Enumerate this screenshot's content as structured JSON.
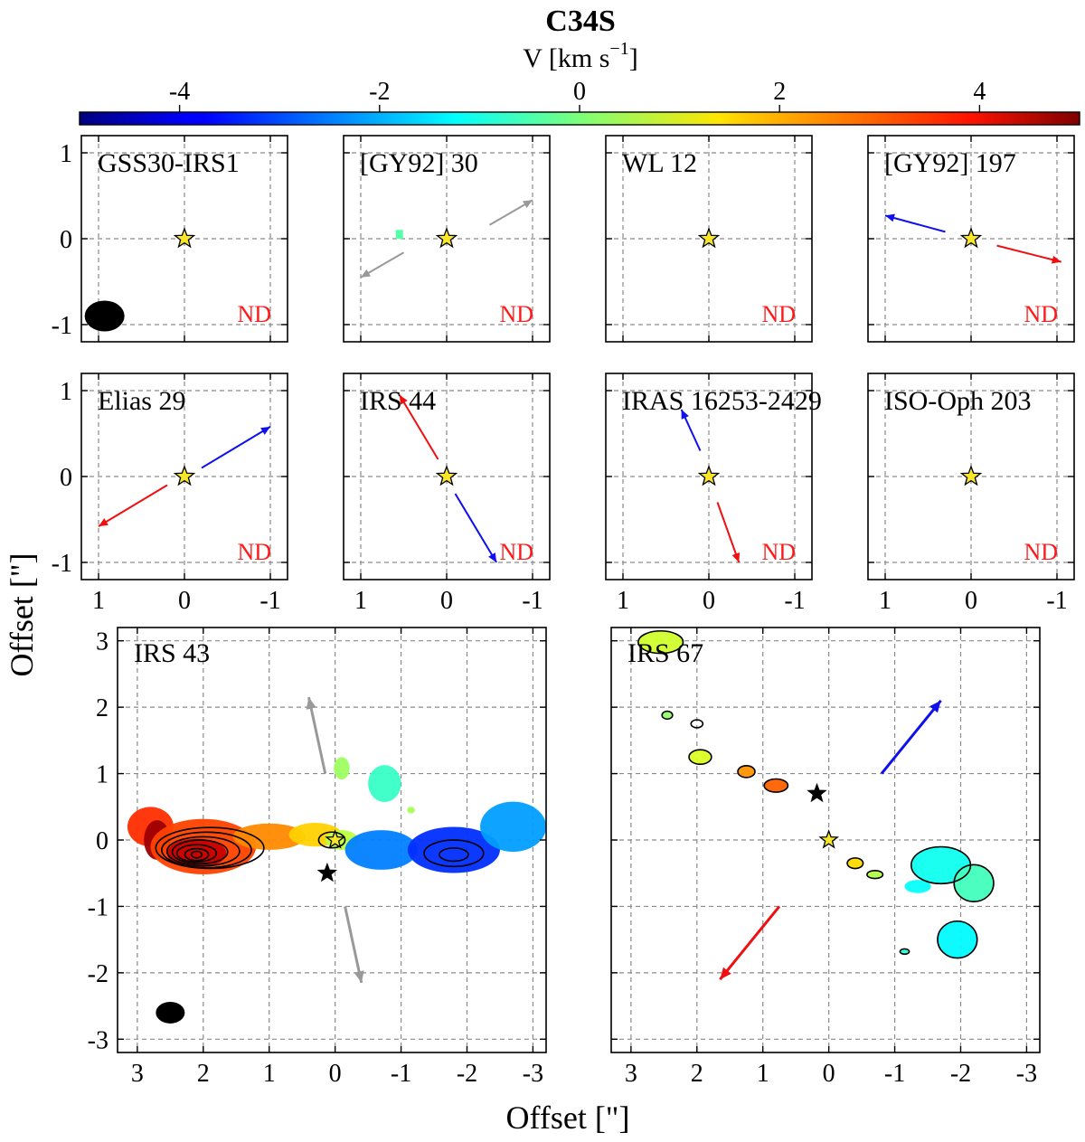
{
  "chart_data": {
    "type": "heatmap",
    "title": "C34S",
    "colorbar": {
      "label": "V [km s-1]",
      "label_main": "V [km s",
      "label_exp": "−1",
      "label_close": "]",
      "vmin": -5.0,
      "vmax": 5.0,
      "ticks": [
        -4,
        -2,
        0,
        2,
        4
      ],
      "tick_labels": [
        "-4",
        "-2",
        "0",
        "2",
        "4"
      ],
      "cmap": "jet"
    },
    "xlabel": "Offset [\"]",
    "ylabel": "Offset [\"]",
    "small_panels": {
      "xlim": [
        1.2,
        -1.2
      ],
      "ylim": [
        -1.2,
        1.2
      ],
      "ticks": [
        1,
        0,
        -1
      ],
      "tick_labels": [
        "1",
        "0",
        "-1"
      ],
      "nd_label": "ND",
      "items": [
        {
          "name": "GSS30-IRS1",
          "row": 0,
          "col": 0,
          "beam": true,
          "arrows": []
        },
        {
          "name": "[GY92] 30",
          "row": 0,
          "col": 1,
          "pixel": {
            "x": 0.55,
            "y": 0.05,
            "v": -0.4
          },
          "arrows": [
            {
              "color": "#999999",
              "from": [
                0.5,
                -0.16
              ],
              "to": [
                1.0,
                -0.45
              ]
            },
            {
              "color": "#999999",
              "from": [
                -0.5,
                0.16
              ],
              "to": [
                -1.0,
                0.45
              ]
            }
          ]
        },
        {
          "name": "WL 12",
          "row": 0,
          "col": 2,
          "arrows": []
        },
        {
          "name": "[GY92] 197",
          "row": 0,
          "col": 3,
          "arrows": [
            {
              "color": "#1010ee",
              "from": [
                0.3,
                0.08
              ],
              "to": [
                1.0,
                0.27
              ]
            },
            {
              "color": "#ee1010",
              "from": [
                -0.3,
                -0.08
              ],
              "to": [
                -1.05,
                -0.27
              ]
            }
          ]
        },
        {
          "name": "Elias 29",
          "row": 1,
          "col": 0,
          "arrows": [
            {
              "color": "#1010ee",
              "from": [
                -0.2,
                0.1
              ],
              "to": [
                -1.0,
                0.58
              ]
            },
            {
              "color": "#ee1010",
              "from": [
                0.2,
                -0.1
              ],
              "to": [
                1.0,
                -0.58
              ]
            }
          ]
        },
        {
          "name": "IRS 44",
          "row": 1,
          "col": 1,
          "arrows": [
            {
              "color": "#ee1010",
              "from": [
                0.1,
                0.2
              ],
              "to": [
                0.55,
                0.95
              ]
            },
            {
              "color": "#1010ee",
              "from": [
                -0.1,
                -0.2
              ],
              "to": [
                -0.58,
                -1.0
              ]
            }
          ]
        },
        {
          "name": "IRAS 16253-2429",
          "row": 1,
          "col": 2,
          "arrows": [
            {
              "color": "#1010ee",
              "from": [
                0.1,
                0.3
              ],
              "to": [
                0.32,
                0.78
              ]
            },
            {
              "color": "#ee1010",
              "from": [
                -0.1,
                -0.3
              ],
              "to": [
                -0.35,
                -1.0
              ]
            }
          ]
        },
        {
          "name": "ISO-Oph 203",
          "row": 1,
          "col": 3,
          "arrows": []
        }
      ]
    },
    "large_panels": {
      "xlim": [
        3.3,
        -3.2
      ],
      "ylim": [
        -3.2,
        3.2
      ],
      "ticks": [
        3,
        2,
        1,
        0,
        -1,
        -2,
        -3
      ],
      "tick_labels": [
        "3",
        "2",
        "1",
        "0",
        "-1",
        "-2",
        "-3"
      ],
      "items": [
        {
          "name": "IRS 43",
          "beam": [
            2.5,
            -2.6
          ],
          "star2": [
            0.12,
            -0.5
          ],
          "arrows": [
            {
              "color": "#999999",
              "from": [
                0.15,
                1.0
              ],
              "to": [
                0.4,
                2.15
              ]
            },
            {
              "color": "#999999",
              "from": [
                -0.15,
                -1.0
              ],
              "to": [
                -0.4,
                -2.15
              ]
            }
          ],
          "blobs": [
            {
              "v": 3.3,
              "cx": 2.8,
              "cy": 0.2,
              "rx": 0.35,
              "ry": 0.3
            },
            {
              "v": 4.7,
              "cx": 2.7,
              "cy": 0.0,
              "rx": 0.2,
              "ry": 0.3
            },
            {
              "v": 3.1,
              "cx": 2.0,
              "cy": -0.1,
              "rx": 0.8,
              "ry": 0.42
            },
            {
              "v": 4.3,
              "cx": 2.1,
              "cy": -0.2,
              "rx": 0.45,
              "ry": 0.22
            },
            {
              "v": 2.4,
              "cx": 1.0,
              "cy": 0.05,
              "rx": 0.55,
              "ry": 0.2
            },
            {
              "v": 1.7,
              "cx": 0.3,
              "cy": 0.08,
              "rx": 0.4,
              "ry": 0.18
            },
            {
              "v": 0.6,
              "cx": -0.1,
              "cy": 0.0,
              "rx": 0.25,
              "ry": 0.15
            },
            {
              "v": -2.5,
              "cx": -0.7,
              "cy": -0.15,
              "rx": 0.55,
              "ry": 0.3
            },
            {
              "v": -3.3,
              "cx": -1.8,
              "cy": -0.15,
              "rx": 0.7,
              "ry": 0.35
            },
            {
              "v": -2.2,
              "cx": -2.7,
              "cy": 0.2,
              "rx": 0.5,
              "ry": 0.38
            },
            {
              "v": -0.7,
              "cx": -0.75,
              "cy": 0.85,
              "rx": 0.25,
              "ry": 0.28
            },
            {
              "v": 0.3,
              "cx": -0.1,
              "cy": 1.08,
              "rx": 0.12,
              "ry": 0.17
            },
            {
              "v": 0.4,
              "cx": -1.15,
              "cy": 0.45,
              "rx": 0.06,
              "ry": 0.05
            }
          ],
          "contours": [
            {
              "cx": 2.1,
              "cy": -0.22,
              "rx": 0.08,
              "ry": 0.05
            },
            {
              "cx": 2.1,
              "cy": -0.22,
              "rx": 0.18,
              "ry": 0.09
            },
            {
              "cx": 2.1,
              "cy": -0.2,
              "rx": 0.3,
              "ry": 0.13
            },
            {
              "cx": 2.05,
              "cy": -0.18,
              "rx": 0.42,
              "ry": 0.18
            },
            {
              "cx": 2.0,
              "cy": -0.17,
              "rx": 0.55,
              "ry": 0.22
            },
            {
              "cx": 1.95,
              "cy": -0.15,
              "rx": 0.68,
              "ry": 0.27
            },
            {
              "cx": 1.9,
              "cy": -0.12,
              "rx": 0.82,
              "ry": 0.31
            },
            {
              "cx": -1.8,
              "cy": -0.2,
              "rx": 0.45,
              "ry": 0.2
            },
            {
              "cx": -1.8,
              "cy": -0.22,
              "rx": 0.22,
              "ry": 0.1
            },
            {
              "cx": 0.05,
              "cy": 0.0,
              "rx": 0.2,
              "ry": 0.12
            }
          ]
        },
        {
          "name": "IRS 67",
          "star2": [
            0.18,
            0.7
          ],
          "arrows": [
            {
              "color": "#1010ee",
              "from": [
                -0.8,
                1.0
              ],
              "to": [
                -1.7,
                2.1
              ]
            },
            {
              "color": "#ee1010",
              "from": [
                0.75,
                -1.0
              ],
              "to": [
                1.65,
                -2.1
              ]
            }
          ],
          "blobs": [
            {
              "v": 0.8,
              "cx": 2.55,
              "cy": 2.98,
              "rx": 0.35,
              "ry": 0.18
            },
            {
              "v": 0.2,
              "cx": 2.45,
              "cy": 1.88,
              "rx": 0.08,
              "ry": 0.06
            },
            {
              "v": 0.9,
              "cx": 1.95,
              "cy": 1.25,
              "rx": 0.18,
              "ry": 0.12
            },
            {
              "v": 2.3,
              "cx": 1.25,
              "cy": 1.03,
              "rx": 0.13,
              "ry": 0.09
            },
            {
              "v": 2.8,
              "cx": 0.8,
              "cy": 0.82,
              "rx": 0.18,
              "ry": 0.1
            },
            {
              "v": 1.6,
              "cx": -0.4,
              "cy": -0.35,
              "rx": 0.12,
              "ry": 0.08
            },
            {
              "v": 0.5,
              "cx": -0.7,
              "cy": -0.52,
              "rx": 0.12,
              "ry": 0.06
            },
            {
              "v": -1.1,
              "cx": -1.7,
              "cy": -0.38,
              "rx": 0.45,
              "ry": 0.28
            },
            {
              "v": -0.6,
              "cx": -2.2,
              "cy": -0.65,
              "rx": 0.3,
              "ry": 0.28
            },
            {
              "v": -1.2,
              "cx": -1.35,
              "cy": -0.7,
              "rx": 0.2,
              "ry": 0.1
            },
            {
              "v": -1.3,
              "cx": -1.95,
              "cy": -1.5,
              "rx": 0.3,
              "ry": 0.28
            },
            {
              "v": -0.9,
              "cx": -1.15,
              "cy": -1.68,
              "rx": 0.07,
              "ry": 0.04
            }
          ],
          "contours": [
            {
              "cx": 2.55,
              "cy": 2.98,
              "rx": 0.34,
              "ry": 0.17
            },
            {
              "cx": 2.45,
              "cy": 1.88,
              "rx": 0.08,
              "ry": 0.06
            },
            {
              "cx": 1.95,
              "cy": 1.25,
              "rx": 0.17,
              "ry": 0.11
            },
            {
              "cx": 2.0,
              "cy": 1.75,
              "rx": 0.09,
              "ry": 0.06
            },
            {
              "cx": 1.25,
              "cy": 1.03,
              "rx": 0.13,
              "ry": 0.09
            },
            {
              "cx": 0.8,
              "cy": 0.82,
              "rx": 0.18,
              "ry": 0.1
            },
            {
              "cx": -0.4,
              "cy": -0.35,
              "rx": 0.12,
              "ry": 0.08
            },
            {
              "cx": -0.7,
              "cy": -0.52,
              "rx": 0.12,
              "ry": 0.06
            },
            {
              "cx": -1.7,
              "cy": -0.38,
              "rx": 0.45,
              "ry": 0.28
            },
            {
              "cx": -2.2,
              "cy": -0.65,
              "rx": 0.3,
              "ry": 0.28
            },
            {
              "cx": -1.95,
              "cy": -1.5,
              "rx": 0.3,
              "ry": 0.28
            },
            {
              "cx": -1.15,
              "cy": -1.68,
              "rx": 0.07,
              "ry": 0.04
            }
          ]
        }
      ]
    }
  }
}
